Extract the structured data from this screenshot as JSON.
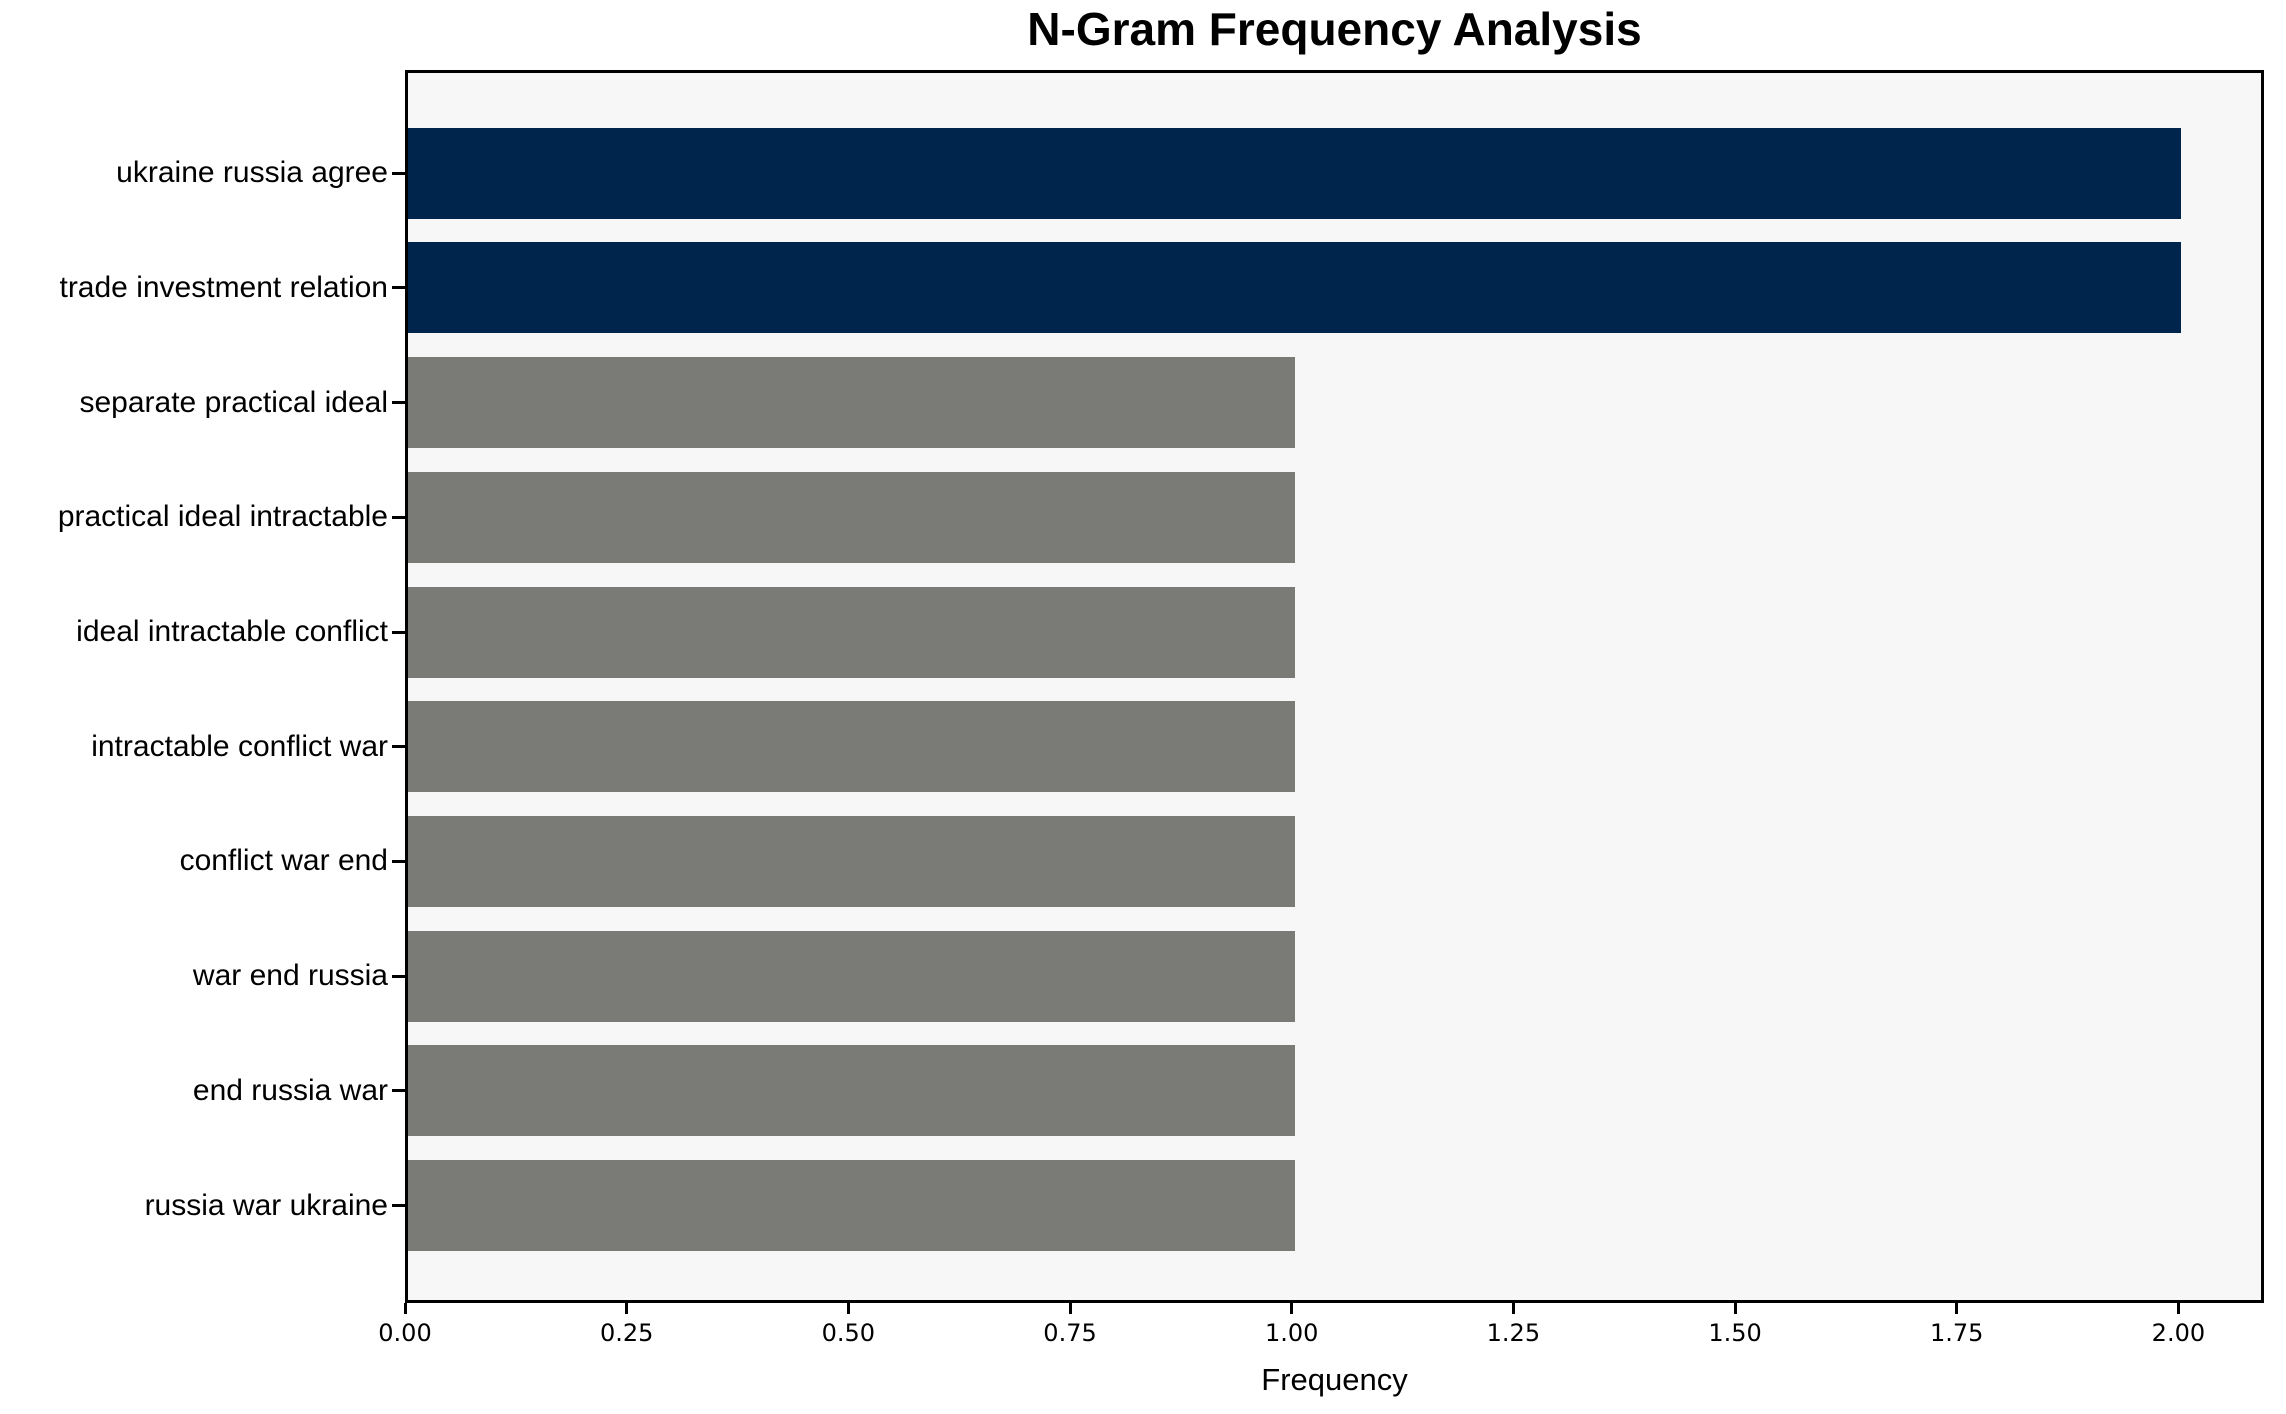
{
  "chart_data": {
    "type": "bar",
    "orientation": "horizontal",
    "title": "N-Gram Frequency Analysis",
    "xlabel": "Frequency",
    "ylabel": "",
    "categories": [
      "ukraine russia agree",
      "trade investment relation",
      "separate practical ideal",
      "practical ideal intractable",
      "ideal intractable conflict",
      "intractable conflict war",
      "conflict war end",
      "war end russia",
      "end russia war",
      "russia war ukraine"
    ],
    "values": [
      2,
      2,
      1,
      1,
      1,
      1,
      1,
      1,
      1,
      1
    ],
    "bar_colors": [
      "#00254D",
      "#00254D",
      "#7A7A76",
      "#7A7A76",
      "#7A7A76",
      "#7A7A76",
      "#7A7A76",
      "#7A7A76",
      "#7A7A76",
      "#7A7A76"
    ],
    "x_tick_labels": [
      "0.00",
      "0.25",
      "0.50",
      "0.75",
      "1.00",
      "1.25",
      "1.50",
      "1.75",
      "2.00"
    ],
    "x_tick_values": [
      0,
      0.25,
      0.5,
      0.75,
      1.0,
      1.25,
      1.5,
      1.75,
      2.0
    ],
    "xlim": [
      0,
      2.1
    ],
    "grid": false,
    "legend": null,
    "colors": {
      "highlight_bar": "#00254D",
      "default_bar": "#7A7A76",
      "plot_background": "#F8F7F7",
      "figure_background": "#FFFFFF",
      "spine": "#000000",
      "text": "#000000"
    }
  }
}
